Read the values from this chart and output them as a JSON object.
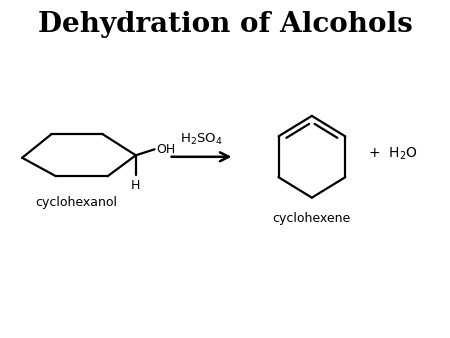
{
  "title": "Dehydration of Alcohols",
  "title_fontsize": 20,
  "title_fontweight": "bold",
  "bg_color": "#ffffff",
  "text_color": "#000000",
  "label_cyclohexanol": "cyclohexanol",
  "label_cyclohexene": "cyclohexene",
  "label_H": "H",
  "label_OH": "OH",
  "lw": 1.6,
  "figw": 4.5,
  "figh": 3.38,
  "dpi": 100
}
